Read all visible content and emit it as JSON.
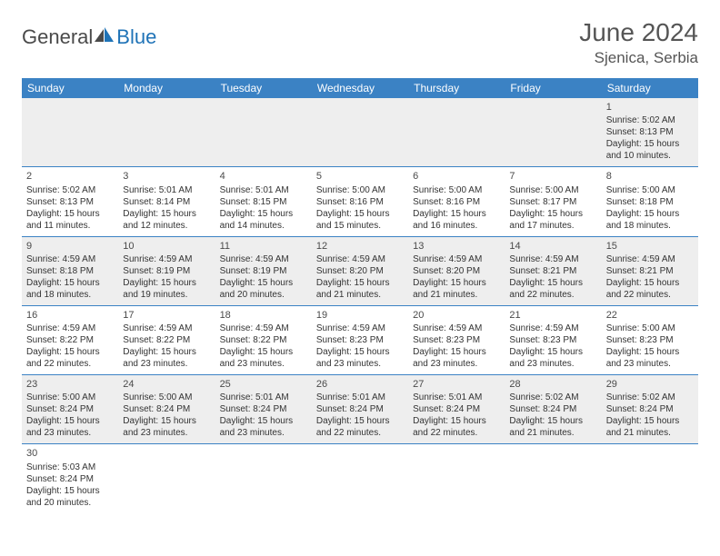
{
  "logo": {
    "text1": "General",
    "text2": "Blue"
  },
  "title": "June 2024",
  "location": "Sjenica, Serbia",
  "colors": {
    "header_bg": "#3b82c4",
    "header_text": "#ffffff",
    "row_alt_bg": "#eeeeee",
    "border": "#3b82c4",
    "logo_gray": "#4a4a4a",
    "logo_blue": "#1f73b7"
  },
  "fonts": {
    "title_size": 28,
    "location_size": 17,
    "dayhead_size": 12,
    "cell_size": 10
  },
  "weekdays": [
    "Sunday",
    "Monday",
    "Tuesday",
    "Wednesday",
    "Thursday",
    "Friday",
    "Saturday"
  ],
  "weeks": [
    [
      null,
      null,
      null,
      null,
      null,
      null,
      {
        "n": "1",
        "sr": "Sunrise: 5:02 AM",
        "ss": "Sunset: 8:13 PM",
        "d1": "Daylight: 15 hours",
        "d2": "and 10 minutes."
      }
    ],
    [
      {
        "n": "2",
        "sr": "Sunrise: 5:02 AM",
        "ss": "Sunset: 8:13 PM",
        "d1": "Daylight: 15 hours",
        "d2": "and 11 minutes."
      },
      {
        "n": "3",
        "sr": "Sunrise: 5:01 AM",
        "ss": "Sunset: 8:14 PM",
        "d1": "Daylight: 15 hours",
        "d2": "and 12 minutes."
      },
      {
        "n": "4",
        "sr": "Sunrise: 5:01 AM",
        "ss": "Sunset: 8:15 PM",
        "d1": "Daylight: 15 hours",
        "d2": "and 14 minutes."
      },
      {
        "n": "5",
        "sr": "Sunrise: 5:00 AM",
        "ss": "Sunset: 8:16 PM",
        "d1": "Daylight: 15 hours",
        "d2": "and 15 minutes."
      },
      {
        "n": "6",
        "sr": "Sunrise: 5:00 AM",
        "ss": "Sunset: 8:16 PM",
        "d1": "Daylight: 15 hours",
        "d2": "and 16 minutes."
      },
      {
        "n": "7",
        "sr": "Sunrise: 5:00 AM",
        "ss": "Sunset: 8:17 PM",
        "d1": "Daylight: 15 hours",
        "d2": "and 17 minutes."
      },
      {
        "n": "8",
        "sr": "Sunrise: 5:00 AM",
        "ss": "Sunset: 8:18 PM",
        "d1": "Daylight: 15 hours",
        "d2": "and 18 minutes."
      }
    ],
    [
      {
        "n": "9",
        "sr": "Sunrise: 4:59 AM",
        "ss": "Sunset: 8:18 PM",
        "d1": "Daylight: 15 hours",
        "d2": "and 18 minutes."
      },
      {
        "n": "10",
        "sr": "Sunrise: 4:59 AM",
        "ss": "Sunset: 8:19 PM",
        "d1": "Daylight: 15 hours",
        "d2": "and 19 minutes."
      },
      {
        "n": "11",
        "sr": "Sunrise: 4:59 AM",
        "ss": "Sunset: 8:19 PM",
        "d1": "Daylight: 15 hours",
        "d2": "and 20 minutes."
      },
      {
        "n": "12",
        "sr": "Sunrise: 4:59 AM",
        "ss": "Sunset: 8:20 PM",
        "d1": "Daylight: 15 hours",
        "d2": "and 21 minutes."
      },
      {
        "n": "13",
        "sr": "Sunrise: 4:59 AM",
        "ss": "Sunset: 8:20 PM",
        "d1": "Daylight: 15 hours",
        "d2": "and 21 minutes."
      },
      {
        "n": "14",
        "sr": "Sunrise: 4:59 AM",
        "ss": "Sunset: 8:21 PM",
        "d1": "Daylight: 15 hours",
        "d2": "and 22 minutes."
      },
      {
        "n": "15",
        "sr": "Sunrise: 4:59 AM",
        "ss": "Sunset: 8:21 PM",
        "d1": "Daylight: 15 hours",
        "d2": "and 22 minutes."
      }
    ],
    [
      {
        "n": "16",
        "sr": "Sunrise: 4:59 AM",
        "ss": "Sunset: 8:22 PM",
        "d1": "Daylight: 15 hours",
        "d2": "and 22 minutes."
      },
      {
        "n": "17",
        "sr": "Sunrise: 4:59 AM",
        "ss": "Sunset: 8:22 PM",
        "d1": "Daylight: 15 hours",
        "d2": "and 23 minutes."
      },
      {
        "n": "18",
        "sr": "Sunrise: 4:59 AM",
        "ss": "Sunset: 8:22 PM",
        "d1": "Daylight: 15 hours",
        "d2": "and 23 minutes."
      },
      {
        "n": "19",
        "sr": "Sunrise: 4:59 AM",
        "ss": "Sunset: 8:23 PM",
        "d1": "Daylight: 15 hours",
        "d2": "and 23 minutes."
      },
      {
        "n": "20",
        "sr": "Sunrise: 4:59 AM",
        "ss": "Sunset: 8:23 PM",
        "d1": "Daylight: 15 hours",
        "d2": "and 23 minutes."
      },
      {
        "n": "21",
        "sr": "Sunrise: 4:59 AM",
        "ss": "Sunset: 8:23 PM",
        "d1": "Daylight: 15 hours",
        "d2": "and 23 minutes."
      },
      {
        "n": "22",
        "sr": "Sunrise: 5:00 AM",
        "ss": "Sunset: 8:23 PM",
        "d1": "Daylight: 15 hours",
        "d2": "and 23 minutes."
      }
    ],
    [
      {
        "n": "23",
        "sr": "Sunrise: 5:00 AM",
        "ss": "Sunset: 8:24 PM",
        "d1": "Daylight: 15 hours",
        "d2": "and 23 minutes."
      },
      {
        "n": "24",
        "sr": "Sunrise: 5:00 AM",
        "ss": "Sunset: 8:24 PM",
        "d1": "Daylight: 15 hours",
        "d2": "and 23 minutes."
      },
      {
        "n": "25",
        "sr": "Sunrise: 5:01 AM",
        "ss": "Sunset: 8:24 PM",
        "d1": "Daylight: 15 hours",
        "d2": "and 23 minutes."
      },
      {
        "n": "26",
        "sr": "Sunrise: 5:01 AM",
        "ss": "Sunset: 8:24 PM",
        "d1": "Daylight: 15 hours",
        "d2": "and 22 minutes."
      },
      {
        "n": "27",
        "sr": "Sunrise: 5:01 AM",
        "ss": "Sunset: 8:24 PM",
        "d1": "Daylight: 15 hours",
        "d2": "and 22 minutes."
      },
      {
        "n": "28",
        "sr": "Sunrise: 5:02 AM",
        "ss": "Sunset: 8:24 PM",
        "d1": "Daylight: 15 hours",
        "d2": "and 21 minutes."
      },
      {
        "n": "29",
        "sr": "Sunrise: 5:02 AM",
        "ss": "Sunset: 8:24 PM",
        "d1": "Daylight: 15 hours",
        "d2": "and 21 minutes."
      }
    ],
    [
      {
        "n": "30",
        "sr": "Sunrise: 5:03 AM",
        "ss": "Sunset: 8:24 PM",
        "d1": "Daylight: 15 hours",
        "d2": "and 20 minutes."
      },
      null,
      null,
      null,
      null,
      null,
      null
    ]
  ]
}
